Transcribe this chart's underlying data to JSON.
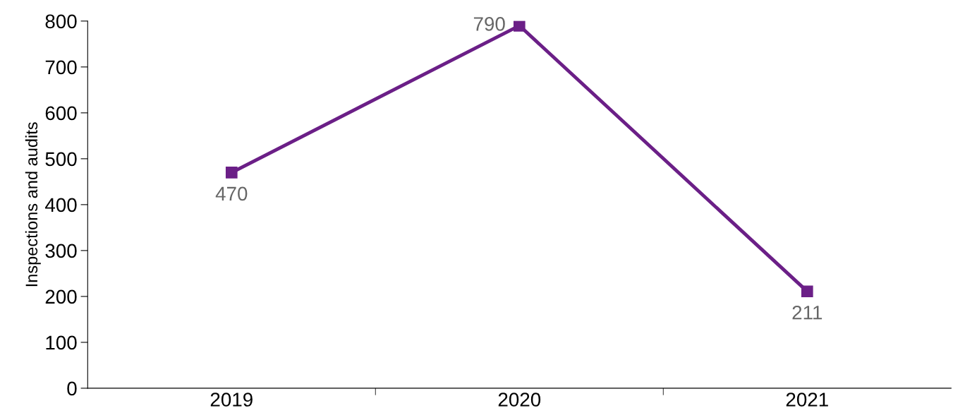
{
  "chart_data": {
    "type": "line",
    "ylabel": "Inspections and audits",
    "categories": [
      "2019",
      "2020",
      "2021"
    ],
    "series": [
      {
        "color": "#6b1f87",
        "values": [
          470,
          790,
          211
        ]
      }
    ],
    "ylim": [
      0,
      800
    ],
    "yticks": [
      0,
      100,
      200,
      300,
      400,
      500,
      600,
      700,
      800
    ],
    "marker": "square",
    "line_style": "solid",
    "data_labels": true,
    "grid": false,
    "legend": false
  }
}
